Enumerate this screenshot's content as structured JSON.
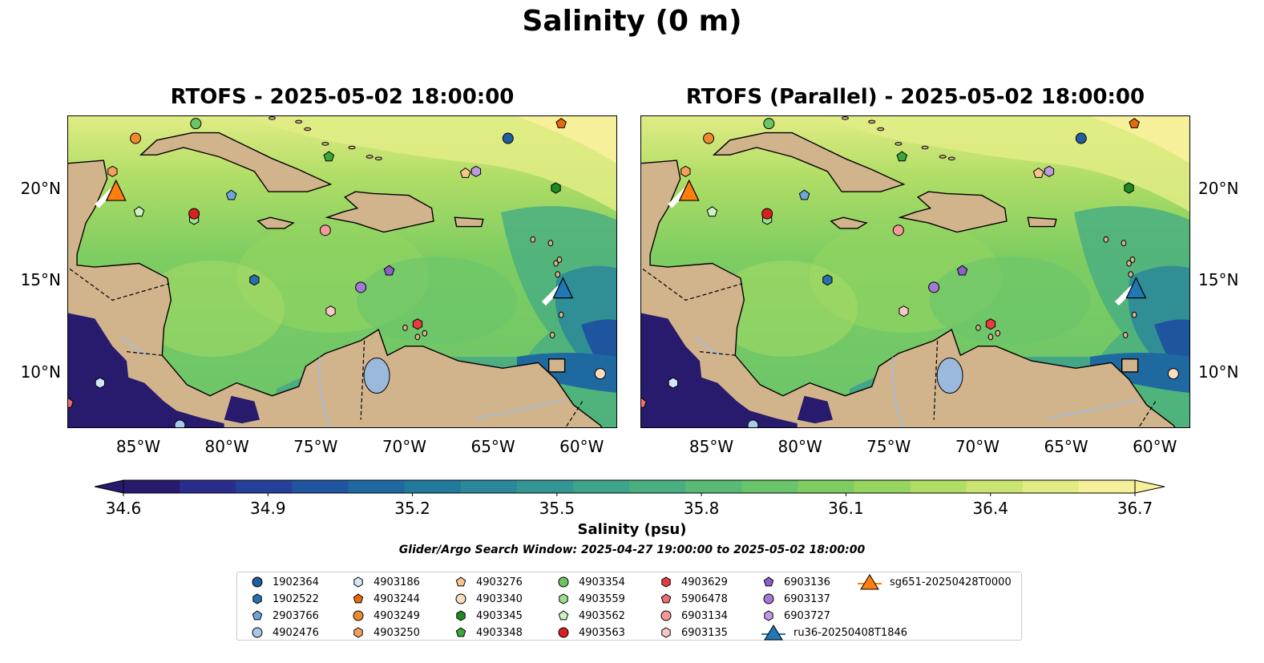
{
  "figure": {
    "title": "Salinity (0 m)",
    "panels": [
      {
        "title": "RTOFS - 2025-05-02 18:00:00"
      },
      {
        "title": "RTOFS (Parallel) - 2025-05-02 18:00:00"
      }
    ],
    "x_ticks": [
      "85°W",
      "80°W",
      "75°W",
      "70°W",
      "65°W",
      "60°W"
    ],
    "y_ticks": [
      "20°N",
      "15°N",
      "10°N"
    ],
    "colorbar": {
      "label": "Salinity (psu)",
      "ticks": [
        "34.6",
        "34.9",
        "35.2",
        "35.5",
        "35.8",
        "36.1",
        "36.4",
        "36.7"
      ],
      "colors": [
        "#281a6c",
        "#2a2c8c",
        "#24409a",
        "#1e559e",
        "#1e69a0",
        "#22799e",
        "#2a889a",
        "#349694",
        "#3ea38b",
        "#4aaf80",
        "#58ba74",
        "#69c46a",
        "#7ecd62",
        "#95d560",
        "#afdd66",
        "#c9e473",
        "#e1ec85",
        "#f6f09a"
      ]
    },
    "search_window": "Glider/Argo Search Window: 2025-04-27 19:00:00 to 2025-05-02 18:00:00",
    "map_colors": {
      "land": "#d2b48c",
      "lake": "#9bb8dd",
      "river": "#a9bcd6",
      "low_salinity": "#281a6c"
    }
  },
  "legend": [
    {
      "label": "1902364",
      "marker": "circle",
      "color": "#1f5f9b"
    },
    {
      "label": "1902522",
      "marker": "hexagon",
      "color": "#2a6fae"
    },
    {
      "label": "2903766",
      "marker": "pentagon",
      "color": "#6fa6d9"
    },
    {
      "label": "4902476",
      "marker": "circle",
      "color": "#a6c8ec"
    },
    {
      "label": "4903186",
      "marker": "hexagon",
      "color": "#d0e6fb"
    },
    {
      "label": "4903244",
      "marker": "pentagon",
      "color": "#e66a0a"
    },
    {
      "label": "4903249",
      "marker": "circle",
      "color": "#f08a2e"
    },
    {
      "label": "4903250",
      "marker": "hexagon",
      "color": "#f5a05a"
    },
    {
      "label": "4903276",
      "marker": "pentagon",
      "color": "#f8c48e"
    },
    {
      "label": "4903340",
      "marker": "circle",
      "color": "#fbdcbd"
    },
    {
      "label": "4903345",
      "marker": "hexagon",
      "color": "#1f8a22"
    },
    {
      "label": "4903348",
      "marker": "pentagon",
      "color": "#3aa83a"
    },
    {
      "label": "4903354",
      "marker": "circle",
      "color": "#6cc562"
    },
    {
      "label": "4903559",
      "marker": "hexagon",
      "color": "#9edd90"
    },
    {
      "label": "4903562",
      "marker": "pentagon",
      "color": "#cff2c2"
    },
    {
      "label": "4903563",
      "marker": "circle",
      "color": "#d62021"
    },
    {
      "label": "4903629",
      "marker": "hexagon",
      "color": "#e43c40"
    },
    {
      "label": "5906478",
      "marker": "pentagon",
      "color": "#ee6f72"
    },
    {
      "label": "6903134",
      "marker": "circle",
      "color": "#f49a98"
    },
    {
      "label": "6903135",
      "marker": "hexagon",
      "color": "#f9c7c7"
    },
    {
      "label": "6903136",
      "marker": "pentagon",
      "color": "#8d5fc8"
    },
    {
      "label": "6903137",
      "marker": "circle",
      "color": "#a27ad6"
    },
    {
      "label": "6903727",
      "marker": "hexagon",
      "color": "#bd9be3"
    },
    {
      "label": "ru36-20250408T1846",
      "marker": "triangle-line",
      "color": "#1f77b4"
    },
    {
      "label": "sg651-20250428T0000",
      "marker": "triangle-line",
      "color": "#ff7f0e"
    }
  ],
  "floats": [
    {
      "id": "1902364",
      "lon": -64.2,
      "lat": 22.8
    },
    {
      "id": "1902522",
      "lon": -78.5,
      "lat": 15.1
    },
    {
      "id": "2903766",
      "lon": -79.8,
      "lat": 19.7
    },
    {
      "id": "4902476",
      "lon": -82.7,
      "lat": 7.2
    },
    {
      "id": "4903186",
      "lon": -87.2,
      "lat": 9.5
    },
    {
      "id": "4903244",
      "lon": -61.2,
      "lat": 23.6
    },
    {
      "id": "4903249",
      "lon": -85.2,
      "lat": 22.8
    },
    {
      "id": "4903250",
      "lon": -86.5,
      "lat": 21.0
    },
    {
      "id": "4903276",
      "lon": -66.6,
      "lat": 20.9
    },
    {
      "id": "4903340",
      "lon": -59.0,
      "lat": 10.0
    },
    {
      "id": "4903345",
      "lon": -61.5,
      "lat": 20.1
    },
    {
      "id": "4903348",
      "lon": -74.3,
      "lat": 21.8
    },
    {
      "id": "4903354",
      "lon": -81.8,
      "lat": 23.6
    },
    {
      "id": "4903559",
      "lon": -81.9,
      "lat": 18.4
    },
    {
      "id": "4903562",
      "lon": -85.0,
      "lat": 18.8
    },
    {
      "id": "4903563",
      "lon": -81.9,
      "lat": 18.7
    },
    {
      "id": "4903629",
      "lon": -69.3,
      "lat": 12.7
    },
    {
      "id": "5906478",
      "lon": -89.0,
      "lat": 8.4
    },
    {
      "id": "6903134",
      "lon": -74.5,
      "lat": 17.8
    },
    {
      "id": "6903135",
      "lon": -74.2,
      "lat": 13.4
    },
    {
      "id": "6903136",
      "lon": -70.9,
      "lat": 15.6
    },
    {
      "id": "6903137",
      "lon": -72.5,
      "lat": 14.7
    },
    {
      "id": "6903727",
      "lon": -66.0,
      "lat": 21.0
    }
  ],
  "gliders": [
    {
      "id": "ru36-20250408T1846",
      "lon": -61.1,
      "lat": 14.6
    },
    {
      "id": "sg651-20250428T0000",
      "lon": -86.3,
      "lat": 19.9
    }
  ],
  "map_extent": {
    "lon": [
      -89.0,
      -58.0
    ],
    "lat": [
      7.0,
      24.0
    ]
  }
}
